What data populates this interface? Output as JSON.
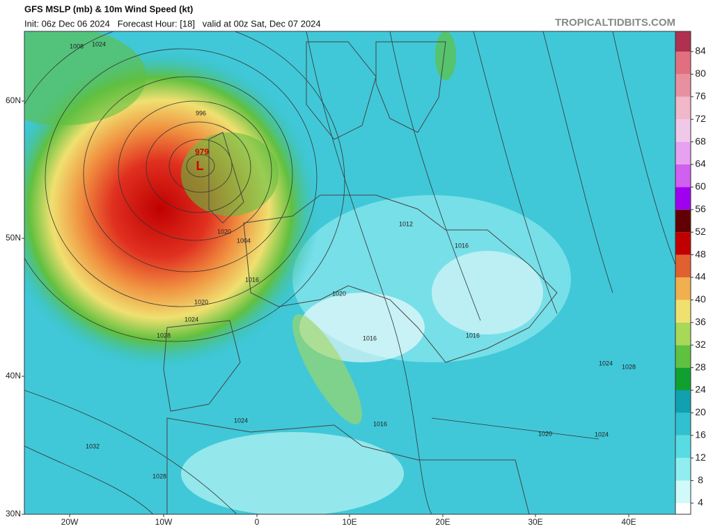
{
  "header": {
    "title": "GFS MSLP (mb) & 10m Wind Speed (kt)",
    "subtitle": "Init: 06z Dec 06 2024   Forecast Hour: [18]   valid at 00z Sat, Dec 07 2024",
    "brand": "TROPICALTIDBITS.COM"
  },
  "axes": {
    "lat_labels": [
      "60N",
      "50N",
      "40N",
      "30N"
    ],
    "lon_labels": [
      "20W",
      "10W",
      "0",
      "10E",
      "20E",
      "30E",
      "40E"
    ]
  },
  "colorbar": {
    "ticks": [
      4,
      8,
      12,
      16,
      20,
      24,
      28,
      32,
      36,
      40,
      44,
      48,
      52,
      56,
      60,
      64,
      68,
      72,
      76,
      80,
      84
    ],
    "colors": [
      "#ffffff",
      "#d0fafa",
      "#90eef0",
      "#58dce4",
      "#30c0d0",
      "#10a0b0",
      "#10a030",
      "#60c040",
      "#a8d858",
      "#f0e070",
      "#f0b050",
      "#e06030",
      "#c00000",
      "#600000",
      "#a000f0",
      "#d060f0",
      "#e8a0f0",
      "#f0c8e8",
      "#f0b8c8",
      "#e890a0",
      "#e07080",
      "#b03050"
    ]
  },
  "map": {
    "low_label": "L",
    "low_pressure": "979",
    "isobar_labels": [
      "1008",
      "1024",
      "996",
      "1020",
      "1004",
      "1016",
      "1020",
      "1024",
      "1028",
      "1012",
      "1016",
      "1020",
      "1016",
      "1016",
      "1024",
      "1028",
      "1024",
      "1016",
      "1020",
      "1024",
      "1032",
      "1028"
    ]
  }
}
